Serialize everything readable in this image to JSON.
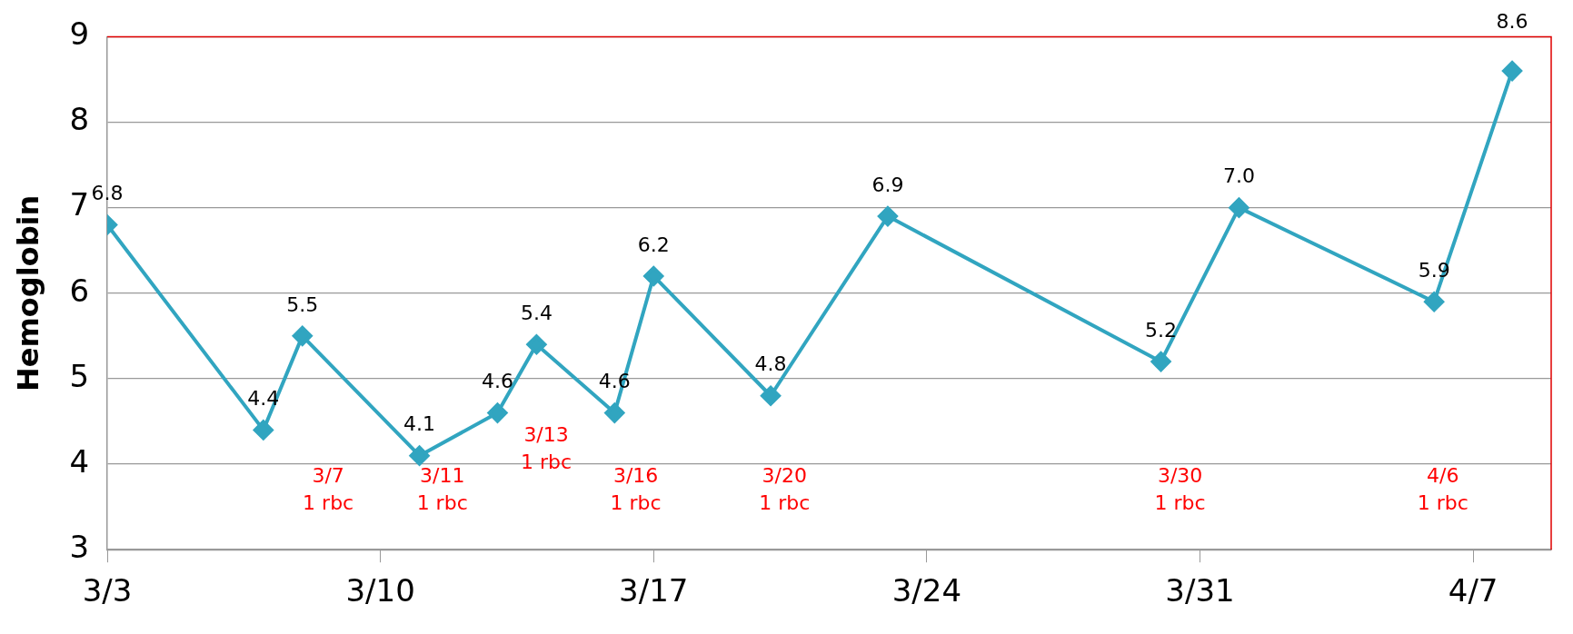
{
  "chart_data": {
    "type": "line",
    "ylabel": "Hemoglobin",
    "x": [
      "--03-03",
      "--03-07",
      "--03-08",
      "--03-11",
      "--03-13",
      "--03-14",
      "--03-16",
      "--03-17",
      "--03-20",
      "--03-23",
      "--03-30",
      "--04-01",
      "--04-06",
      "--04-08"
    ],
    "series": [
      {
        "color": "#31a5c0",
        "values": [
          6.8,
          4.4,
          5.5,
          4.1,
          4.6,
          5.4,
          4.6,
          6.2,
          4.8,
          6.9,
          5.2,
          7.0,
          5.9,
          8.6
        ],
        "value_labels": [
          "6.8",
          "4.4",
          "5.5",
          "4.1",
          "4.6",
          "5.4",
          "4.6",
          "6.2",
          "4.8",
          "6.9",
          "5.2",
          "7.0",
          "5.9",
          "8.6"
        ]
      }
    ],
    "xlim": [
      "--03-03",
      "--04-09"
    ],
    "xticks": [
      {
        "value": "--03-03",
        "label": "3/3"
      },
      {
        "value": "--03-10",
        "label": "3/10"
      },
      {
        "value": "--03-17",
        "label": "3/17"
      },
      {
        "value": "--03-24",
        "label": "3/24"
      },
      {
        "value": "--03-31",
        "label": "3/31"
      },
      {
        "value": "--04-07",
        "label": "4/7"
      }
    ],
    "ylim": [
      3,
      9
    ],
    "yticks": [
      3,
      4,
      5,
      6,
      7,
      8,
      9
    ],
    "grid": "y",
    "marker": "diamond",
    "line_style": "solid",
    "legend": false,
    "annotations": [
      "3/7\n1 rbc",
      "3/11\n1 rbc",
      "3/13\n1 rbc",
      "3/16\n1 rbc",
      "3/20\n1 rbc",
      "3/30\n1 rbc",
      "4/6\n1 rbc"
    ]
  }
}
